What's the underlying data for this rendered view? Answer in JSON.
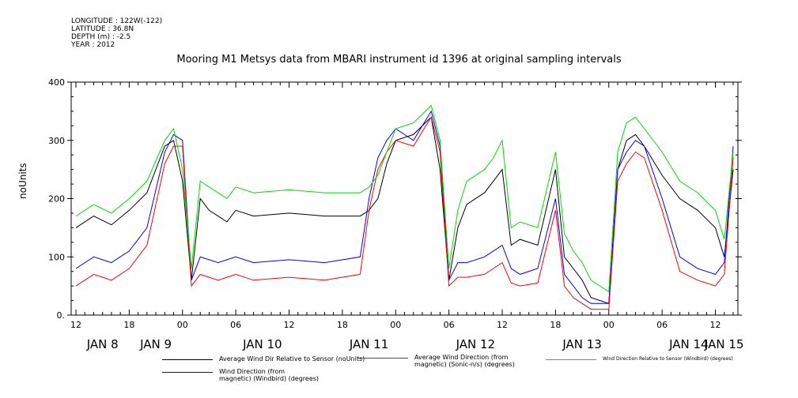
{
  "header": {
    "longitude": "LONGITUDE : 122W(-122)",
    "latitude": "LATITUDE : 36.8N",
    "depth": "DEPTH (m) : -2.5",
    "year": "YEAR : 2012"
  },
  "chart_data": {
    "type": "line",
    "title": "Mooring M1 Metsys data from MBARI instrument id 1396 at original sampling intervals",
    "ylabel": "noUnits",
    "xlabel": "",
    "ylim": [
      0,
      400
    ],
    "yticks": [
      "0.",
      "100",
      "200",
      "300",
      "400"
    ],
    "xlim": [
      0,
      74
    ],
    "hour_ticks": [
      {
        "x": 0,
        "label": "12"
      },
      {
        "x": 6,
        "label": "18"
      },
      {
        "x": 12,
        "label": "00"
      },
      {
        "x": 18,
        "label": "06"
      },
      {
        "x": 24,
        "label": "12"
      },
      {
        "x": 30,
        "label": "18"
      },
      {
        "x": 36,
        "label": "00"
      },
      {
        "x": 42,
        "label": "06"
      },
      {
        "x": 48,
        "label": "12"
      },
      {
        "x": 54,
        "label": "18"
      },
      {
        "x": 60,
        "label": "00"
      },
      {
        "x": 66,
        "label": "06"
      },
      {
        "x": 72,
        "label": "12"
      }
    ],
    "day_labels": [
      "JAN  8",
      "JAN  9",
      "JAN 10",
      "JAN 11",
      "JAN 12",
      "JAN 13",
      "JAN 14",
      "JAN 15"
    ],
    "grid": false,
    "legend_position": "bottom",
    "series": [
      {
        "name": "Average Wind Dir Relative to Sensor (noUnits)",
        "color": "#000000",
        "x": [
          0,
          2,
          4,
          6,
          8,
          10,
          11,
          12,
          13,
          14,
          15,
          16,
          17,
          18,
          20,
          24,
          28,
          32,
          33,
          34,
          35,
          36,
          38,
          40,
          41,
          42,
          43,
          44,
          46,
          47,
          48,
          49,
          50,
          52,
          54,
          55,
          56,
          57,
          58,
          60,
          61,
          62,
          63,
          64,
          66,
          68,
          70,
          72,
          73,
          74
        ],
        "y": [
          150,
          170,
          155,
          180,
          210,
          290,
          300,
          230,
          60,
          200,
          180,
          170,
          160,
          180,
          170,
          175,
          170,
          170,
          180,
          200,
          260,
          300,
          310,
          340,
          250,
          60,
          150,
          190,
          210,
          230,
          250,
          120,
          130,
          120,
          250,
          100,
          80,
          60,
          30,
          20,
          250,
          300,
          310,
          290,
          240,
          200,
          180,
          150,
          100,
          250
        ]
      },
      {
        "name": "Wind Direction (from\nmagnetic) (Windbird) (degrees)",
        "color": "#0000ff",
        "x": [
          0,
          2,
          4,
          6,
          8,
          10,
          11,
          12,
          13,
          14,
          15,
          16,
          17,
          18,
          20,
          24,
          28,
          32,
          33,
          34,
          35,
          36,
          38,
          40,
          41,
          42,
          43,
          44,
          46,
          47,
          48,
          49,
          50,
          52,
          54,
          55,
          56,
          57,
          58,
          60,
          61,
          62,
          63,
          64,
          66,
          68,
          70,
          72,
          73,
          74
        ],
        "y": [
          80,
          100,
          90,
          110,
          150,
          280,
          310,
          300,
          60,
          100,
          95,
          90,
          95,
          100,
          90,
          95,
          90,
          100,
          200,
          270,
          300,
          320,
          300,
          350,
          290,
          60,
          90,
          90,
          100,
          110,
          120,
          80,
          70,
          80,
          200,
          70,
          50,
          30,
          20,
          20,
          250,
          280,
          300,
          290,
          200,
          100,
          80,
          70,
          90,
          290
        ]
      },
      {
        "name": "Average Wind Direction (from\nmagnetic) (Sonic-n/s) (degrees)",
        "color": "#ff0000",
        "x": [
          0,
          2,
          4,
          6,
          8,
          10,
          11,
          12,
          13,
          14,
          15,
          16,
          17,
          18,
          20,
          24,
          28,
          32,
          33,
          34,
          35,
          36,
          38,
          40,
          41,
          42,
          43,
          44,
          46,
          47,
          48,
          49,
          50,
          52,
          54,
          55,
          56,
          57,
          58,
          60,
          61,
          62,
          63,
          64,
          66,
          68,
          70,
          72,
          73,
          74
        ],
        "y": [
          50,
          70,
          60,
          80,
          120,
          260,
          290,
          290,
          50,
          70,
          65,
          60,
          65,
          70,
          60,
          65,
          60,
          70,
          180,
          250,
          280,
          300,
          290,
          340,
          280,
          50,
          65,
          65,
          70,
          80,
          90,
          55,
          50,
          55,
          180,
          50,
          30,
          20,
          10,
          10,
          230,
          260,
          280,
          270,
          180,
          75,
          60,
          50,
          70,
          270
        ]
      },
      {
        "name": "Wind Direction Relative to Sensor (Windbird) (degrees)",
        "color": "#00dd00",
        "x": [
          0,
          2,
          4,
          6,
          8,
          10,
          11,
          12,
          13,
          14,
          15,
          16,
          17,
          18,
          20,
          24,
          28,
          32,
          33,
          34,
          35,
          36,
          38,
          40,
          41,
          42,
          43,
          44,
          46,
          47,
          48,
          49,
          50,
          52,
          54,
          55,
          56,
          57,
          58,
          60,
          61,
          62,
          63,
          64,
          66,
          68,
          70,
          72,
          73,
          74
        ],
        "y": [
          170,
          190,
          175,
          200,
          230,
          300,
          320,
          250,
          80,
          230,
          220,
          210,
          200,
          220,
          210,
          215,
          210,
          210,
          220,
          240,
          280,
          320,
          330,
          360,
          300,
          80,
          180,
          230,
          250,
          270,
          300,
          150,
          160,
          150,
          280,
          140,
          110,
          90,
          60,
          40,
          280,
          330,
          340,
          320,
          280,
          230,
          210,
          180,
          130,
          280
        ]
      }
    ]
  }
}
